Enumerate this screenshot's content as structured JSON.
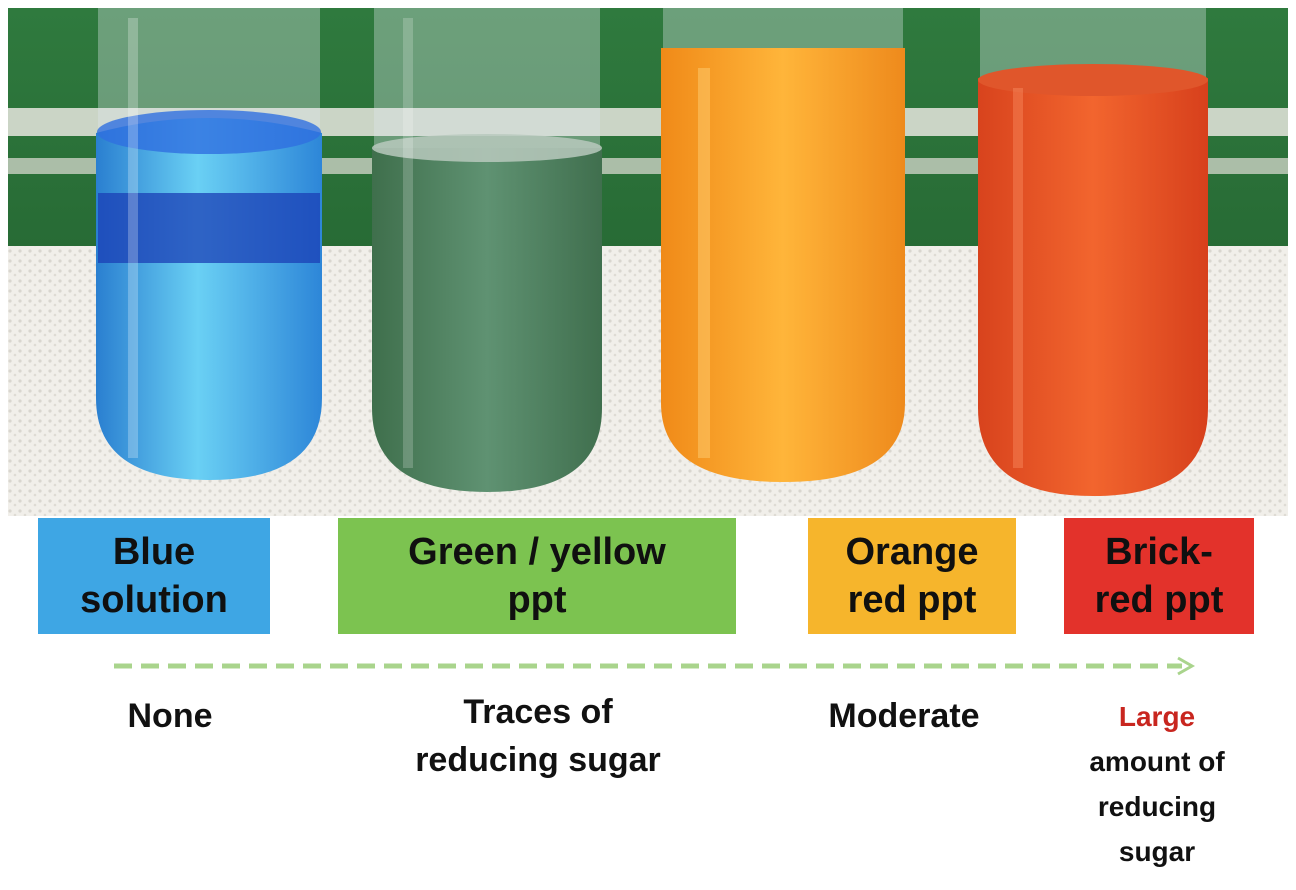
{
  "labels": {
    "blue": "Blue\nsolution",
    "green": "Green / yellow\nppt",
    "orange": "Orange\nred ppt",
    "brick": "Brick-\nred ppt"
  },
  "captions": {
    "none": "None",
    "traces": "Traces of\nreducing sugar",
    "moderate": "Moderate",
    "large_highlight": "Large",
    "large_rest": "amount of\nreducing\nsugar"
  },
  "colors": {
    "blue_box": "#3ea6e4",
    "green_box": "#7cc350",
    "orange_box": "#f6b52c",
    "brick_box": "#e3322b",
    "arrow": "#a9d48c",
    "highlight_text": "#c8261f"
  },
  "tubes": [
    "blue",
    "green",
    "orange",
    "red"
  ]
}
